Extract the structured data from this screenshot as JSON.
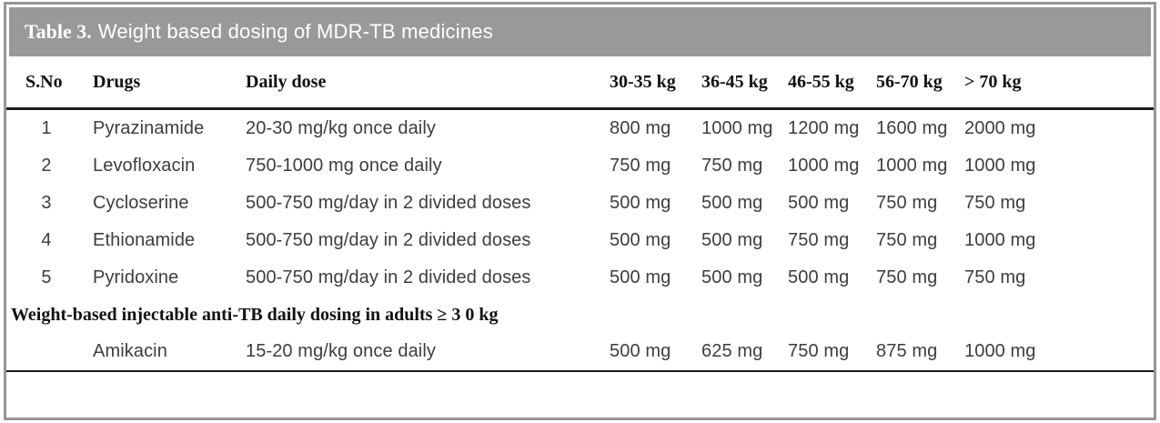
{
  "table": {
    "title_prefix": "Table 3.",
    "title_rest": "Weight based dosing of MDR-TB medicines",
    "columns": [
      "S.No",
      "Drugs",
      "Daily dose",
      "30-35 kg",
      "36-45 kg",
      "46-55 kg",
      "56-70 kg",
      "> 70 kg"
    ],
    "rows": [
      {
        "sno": "1",
        "drug": "Pyrazinamide",
        "daily_dose": "20-30 mg/kg once daily",
        "doses": [
          "800 mg",
          "1000 mg",
          "1200 mg",
          "1600 mg",
          "2000 mg"
        ]
      },
      {
        "sno": "2",
        "drug": "Levofloxacin",
        "daily_dose": "750-1000 mg once daily",
        "doses": [
          "750 mg",
          "750 mg",
          "1000 mg",
          "1000 mg",
          "1000 mg"
        ]
      },
      {
        "sno": "3",
        "drug": "Cycloserine",
        "daily_dose": "500-750 mg/day in 2 divided doses",
        "doses": [
          "500 mg",
          "500 mg",
          "500 mg",
          "750 mg",
          "750 mg"
        ]
      },
      {
        "sno": "4",
        "drug": "Ethionamide",
        "daily_dose": "500-750 mg/day in 2 divided doses",
        "doses": [
          "500 mg",
          "500 mg",
          "750 mg",
          "750 mg",
          "1000 mg"
        ]
      },
      {
        "sno": "5",
        "drug": "Pyridoxine",
        "daily_dose": "500-750 mg/day in 2 divided doses",
        "doses": [
          "500 mg",
          "500 mg",
          "500 mg",
          "750 mg",
          "750 mg"
        ]
      }
    ],
    "section_header": "Weight-based injectable anti-TB daily dosing in adults ≥ 3 0 kg",
    "section_rows": [
      {
        "sno": "",
        "drug": "Amikacin",
        "daily_dose": "15-20 mg/kg once daily",
        "doses": [
          "500 mg",
          "625 mg",
          "750 mg",
          "875 mg",
          "1000 mg"
        ]
      }
    ]
  },
  "colors": {
    "title_bar": "#98999b",
    "frame_border": "#95979a",
    "rule": "#1c1c1c",
    "header_text": "#111111",
    "body_text": "#3d3d3d",
    "title_text": "#ffffff"
  }
}
